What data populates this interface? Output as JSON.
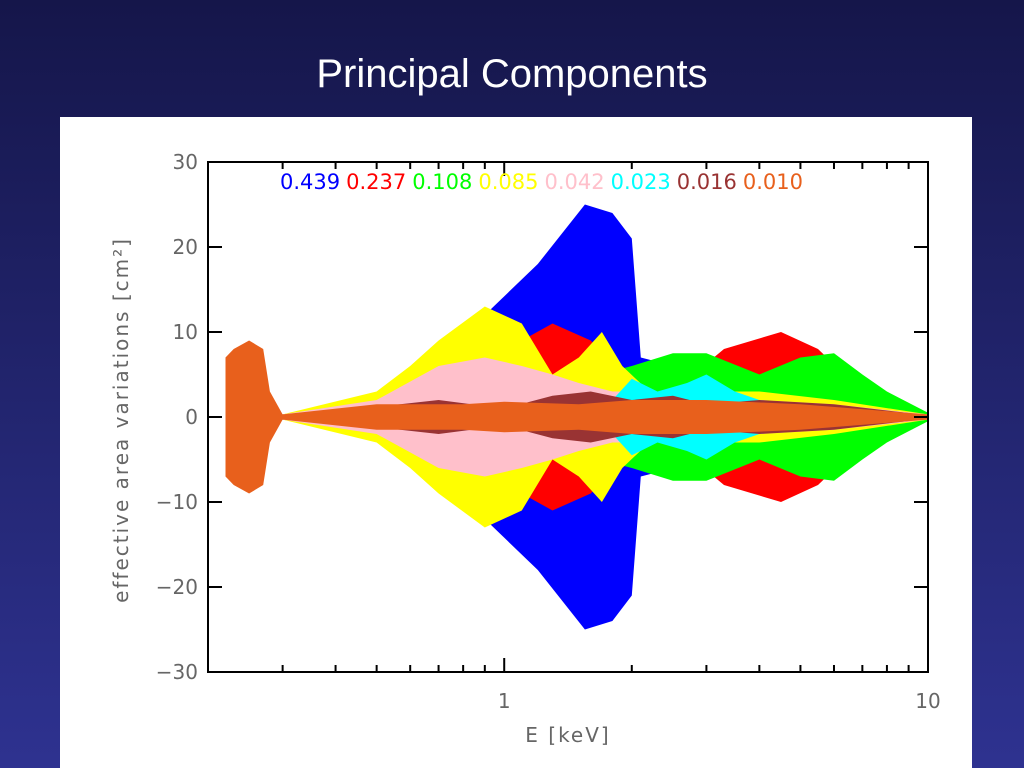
{
  "title": "Principal Components",
  "chart_data": {
    "type": "band",
    "xlabel": "E [keV]",
    "ylabel": "effective area variations [cm²]",
    "log_x": true,
    "xlim": [
      0.2,
      10
    ],
    "xticks": [
      1,
      10
    ],
    "xminorticks": [
      0.3,
      0.4,
      0.5,
      0.6,
      0.7,
      0.8,
      0.9,
      2,
      3,
      4,
      5,
      6,
      7,
      8,
      9
    ],
    "ylim": [
      -30,
      30
    ],
    "yticks": [
      {
        "value": -30,
        "label": "−30"
      },
      {
        "value": -20,
        "label": "−20"
      },
      {
        "value": -10,
        "label": "−10"
      },
      0,
      10,
      20,
      30
    ],
    "series": [
      {
        "name": "0.439",
        "color": "#0000ff",
        "x": [
          0.3,
          0.5,
          0.7,
          0.9,
          1.2,
          1.55,
          1.8,
          2.0,
          2.1,
          3,
          5,
          10
        ],
        "values": [
          0.3,
          2,
          6,
          12,
          18,
          25,
          24,
          21,
          7,
          5,
          3,
          0.5
        ]
      },
      {
        "name": "0.237",
        "color": "#ff0000",
        "x": [
          0.3,
          0.6,
          0.9,
          1.1,
          1.3,
          1.6,
          2,
          2.5,
          3.3,
          4.5,
          5.5,
          7,
          10
        ],
        "values": [
          0.2,
          2,
          6,
          9,
          11,
          9,
          4,
          3,
          8,
          10,
          8,
          3,
          0.5
        ]
      },
      {
        "name": "0.108",
        "color": "#00ff00",
        "x": [
          0.3,
          1,
          2,
          2.5,
          3,
          4,
          5,
          6,
          7,
          8,
          10
        ],
        "values": [
          0.2,
          2,
          6,
          7.5,
          7.5,
          5,
          7,
          7.5,
          5,
          3,
          0.5
        ]
      },
      {
        "name": "0.085",
        "color": "#ffff00",
        "x": [
          0.3,
          0.5,
          0.6,
          0.7,
          0.9,
          1.1,
          1.3,
          1.5,
          1.7,
          1.9,
          2.2,
          3,
          4,
          6,
          10
        ],
        "values": [
          0.3,
          3,
          6,
          9,
          13,
          11,
          5,
          7,
          10,
          6,
          3,
          3,
          3,
          2,
          0.3
        ]
      },
      {
        "name": "0.042",
        "color": "#ffc0cb",
        "x": [
          0.3,
          0.5,
          0.7,
          0.9,
          1.1,
          1.3,
          1.5,
          1.8,
          2.2,
          3,
          4,
          6,
          10
        ],
        "values": [
          0.3,
          2,
          6,
          7,
          6,
          5,
          4,
          3,
          3,
          2.5,
          2,
          1.5,
          0.3
        ]
      },
      {
        "name": "0.023",
        "color": "#00ffff",
        "x": [
          0.3,
          1.5,
          1.8,
          2.0,
          2.3,
          2.7,
          3,
          3.5,
          4,
          6,
          10
        ],
        "values": [
          0.1,
          1,
          2,
          4.5,
          3,
          4,
          5,
          3,
          2,
          1,
          0.2
        ]
      },
      {
        "name": "0.016",
        "color": "#993333",
        "x": [
          0.3,
          0.5,
          0.7,
          1,
          1.3,
          1.6,
          2,
          2.5,
          3,
          4,
          6,
          10
        ],
        "values": [
          0.2,
          1.2,
          2,
          1,
          2.5,
          3,
          2,
          2.5,
          1.5,
          2,
          1.5,
          0.2
        ]
      },
      {
        "name": "0.010",
        "color": "#e8601c",
        "x": [
          0.22,
          0.23,
          0.25,
          0.27,
          0.28,
          0.3,
          0.5,
          0.8,
          1,
          1.5,
          2,
          3,
          5,
          10
        ],
        "values": [
          7,
          8,
          9,
          8,
          3,
          0.3,
          1.5,
          1.5,
          1.8,
          1.5,
          2,
          2,
          1.5,
          0.3
        ]
      }
    ]
  }
}
